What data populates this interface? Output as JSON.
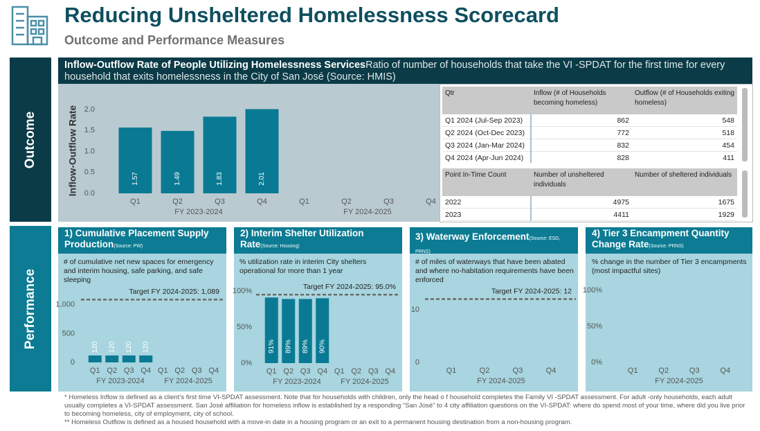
{
  "header": {
    "title": "Reducing Unsheltered Homelessness Scorecard",
    "subtitle": "Outcome and Performance Measures"
  },
  "outcome": {
    "label": "Outcome",
    "title": "Inflow-Outflow Rate of People Utilizing Homelessness Services",
    "description": "Ratio of number of households that take the VI -SPDAT for the first time for every household that exits homelessness in the City of San José (Source: HMIS)",
    "chart_data": {
      "type": "bar",
      "y_label": "Inflow-Outflow Rate",
      "categories": [
        "Q1",
        "Q2",
        "Q3",
        "Q4",
        "Q1",
        "Q2",
        "Q3",
        "Q4"
      ],
      "group_labels": [
        "FY 2023-2024",
        "FY 2024-2025"
      ],
      "values": [
        1.57,
        1.49,
        1.83,
        2.01,
        null,
        null,
        null,
        null
      ],
      "color": "#0a7a94",
      "ylim": [
        0,
        2.2
      ],
      "yticks": [
        {
          "value": 0,
          "label": "0.0"
        },
        {
          "value": 0.5,
          "label": "0.5"
        },
        {
          "value": 1,
          "label": "1.0"
        },
        {
          "value": 1.5,
          "label": "1.5"
        },
        {
          "value": 2,
          "label": "2.0"
        }
      ]
    },
    "tables": [
      {
        "columns": [
          "Qtr",
          "Inflow (# of Households becoming homeless)",
          "Outflow (# of Households exiting homeless)"
        ],
        "rows": [
          [
            "Q1 2024 (Jul-Sep 2023)",
            862,
            548
          ],
          [
            "Q2 2024 (Oct-Dec 2023)",
            772,
            518
          ],
          [
            "Q3 2024 (Jan-Mar 2024)",
            832,
            454
          ],
          [
            "Q4 2024 (Apr-Jun 2024)",
            828,
            411
          ]
        ]
      },
      {
        "columns": [
          "Point In-Time Count",
          "Number of unsheltered individuals",
          "Number of sheltered individuals"
        ],
        "rows": [
          [
            "2022",
            4975,
            1675
          ],
          [
            "2023",
            4411,
            1929
          ]
        ]
      }
    ]
  },
  "performance": {
    "label": "Performance",
    "cards": [
      {
        "title": "1) Cumulative Placement Supply Production",
        "source": "(Source: PW)",
        "description": "# of cumulative net new spaces for emergency and interim housing, safe parking, and safe sleeping",
        "chart_data": {
          "type": "bar",
          "categories": [
            "Q1",
            "Q2",
            "Q3",
            "Q4",
            "Q1",
            "Q2",
            "Q3",
            "Q4"
          ],
          "group_labels": [
            "FY 2023-2024",
            "FY 2024-2025"
          ],
          "values": [
            120,
            120,
            120,
            120,
            null,
            null,
            null,
            null
          ],
          "color": "#0a7a94",
          "ylim": [
            0,
            1250
          ],
          "yticks": [
            0,
            500,
            {
              "value": 1000,
              "label": "1,000"
            }
          ],
          "target": 1089,
          "target_label": "Target FY 2024-2025: 1,089"
        }
      },
      {
        "title": "2) Interim Shelter Utilization Rate",
        "source": "(Source: Housing)",
        "description": "% utilization rate in interim City shelters operational for more than 1 year",
        "chart_data": {
          "type": "bar",
          "categories": [
            "Q1",
            "Q2",
            "Q3",
            "Q4",
            "Q1",
            "Q2",
            "Q3",
            "Q4"
          ],
          "group_labels": [
            "FY 2023-2024",
            "FY 2024-2025"
          ],
          "values": [
            91,
            89,
            89,
            90,
            null,
            null,
            null,
            null
          ],
          "value_labels": [
            "91%",
            "89%",
            "89%",
            "90%",
            null,
            null,
            null,
            null
          ],
          "color": "#0a7a94",
          "ylim": [
            0,
            100
          ],
          "yticks": [
            {
              "value": 0,
              "label": "0%"
            },
            {
              "value": 50,
              "label": "50%"
            },
            {
              "value": 100,
              "label": "100%"
            }
          ],
          "target": 95,
          "target_label": "Target FY 2024-2025: 95.0%"
        }
      },
      {
        "title": "3) Waterway Enforcement",
        "source": "(Source: ESD, PRNS)",
        "description": "# of miles of waterways that have been abated and where no-habitation requirements have been enforced",
        "chart_data": {
          "type": "bar",
          "categories": [
            "Q1",
            "Q2",
            "Q3",
            "Q4"
          ],
          "group_labels": [
            "FY 2024-2025"
          ],
          "values": [
            null,
            null,
            null,
            null
          ],
          "ylim": [
            0,
            13
          ],
          "yticks": [
            0,
            10
          ],
          "target": 12,
          "target_label": "Target FY 2024-2025: 12"
        }
      },
      {
        "title": "4) Tier 3 Encampment Quantity Change Rate",
        "source": "(Source: PRNS)",
        "description": "% change in the number of Tier 3 encampments (most impactful sites)",
        "chart_data": {
          "type": "bar",
          "categories": [
            "Q1",
            "Q2",
            "Q3",
            "Q4"
          ],
          "group_labels": [
            "FY 2024-2025"
          ],
          "values": [
            null,
            null,
            null,
            null
          ],
          "ylim": [
            0,
            100
          ],
          "yticks": [
            {
              "value": 0,
              "label": "0%"
            },
            {
              "value": 50,
              "label": "50%"
            },
            {
              "value": 100,
              "label": "100%"
            }
          ]
        }
      }
    ]
  },
  "footnotes": [
    "* Homeless Inflow is defined as a client’s first time VI-SPDAT assessment. Note that for households with children, only the head o f household completes the Family VI -SPDAT assessment. For adult -only households, each adult usually completes a VI-SPDAT assessment. San José affiliation for homeless inflow is established by a responding “San José” to 4 city affiliation questions on the VI-SPDAT: where do spend most of your time, where did you live prior to becoming homeless, city of employment, city of school.",
    "** Homeless Outflow is defined as a housed household with a move-in date in a housing program or an exit to a permanent housing   destination from a non-housing program."
  ]
}
